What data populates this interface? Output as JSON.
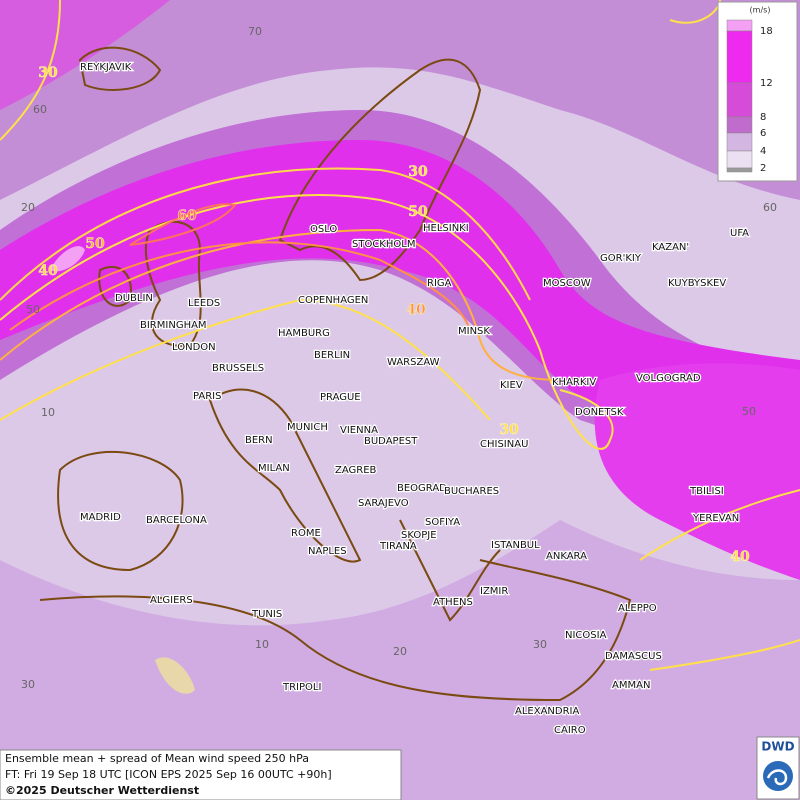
{
  "title": "Ensemble mean + spread of Mean wind speed 250 hPa",
  "forecast_time": "FT: Fri 19 Sep 18 UTC [ICON EPS 2025 Sep 16 00UTC +90h]",
  "copyright": "©2025 Deutscher Wetterdienst",
  "logo": "DWD",
  "legend": {
    "unit": "(m/s)",
    "levels": [
      18,
      12,
      8,
      6,
      4,
      2
    ],
    "colors": [
      "#f4a0f4",
      "#ee2aee",
      "#d64cd9",
      "#c06ccc",
      "#d4b6e2",
      "#ebe0f1",
      "#9a9a9a"
    ]
  },
  "cities": [
    "REYKJAVIK",
    "DUBLIN",
    "LEEDS",
    "BIRMINGHAM",
    "LONDON",
    "BRUSSELS",
    "PARIS",
    "OSLO",
    "STOCKHOLM",
    "HELSINKI",
    "COPENHAGEN",
    "HAMBURG",
    "BERLIN",
    "RIGA",
    "MINSK",
    "MOSCOW",
    "GOR'KIY",
    "KAZAN'",
    "UFA",
    "KUYBYSKEV",
    "WARSZAW",
    "KIEV",
    "KHARKIV",
    "VOLGOGRAD",
    "DONETSK",
    "PRAGUE",
    "MUNICH",
    "VIENNA",
    "BERN",
    "MILAN",
    "BUDAPEST",
    "ZAGREB",
    "CHISINAU",
    "BEOGRAD",
    "BUCHARES",
    "SARAJEVO",
    "SOFIYA",
    "SKOPJE",
    "TIRANA",
    "ISTANBUL",
    "ANKARA",
    "TBILISI",
    "YEREVAN",
    "MADRID",
    "BARCELONA",
    "ROME",
    "NAPLES",
    "ALGIERS",
    "TUNIS",
    "ATHENS",
    "IZMIR",
    "ALEPPO",
    "NICOSIA",
    "DAMASCUS",
    "AMMAN",
    "TRIPOLI",
    "ALEXANDRIA",
    "CAIRO"
  ],
  "contour_labels": [
    30,
    30,
    50,
    60,
    50,
    40,
    40,
    30,
    40
  ],
  "grid_labels": [
    70,
    60,
    20,
    60,
    50,
    10,
    50,
    10,
    20,
    30,
    30
  ]
}
